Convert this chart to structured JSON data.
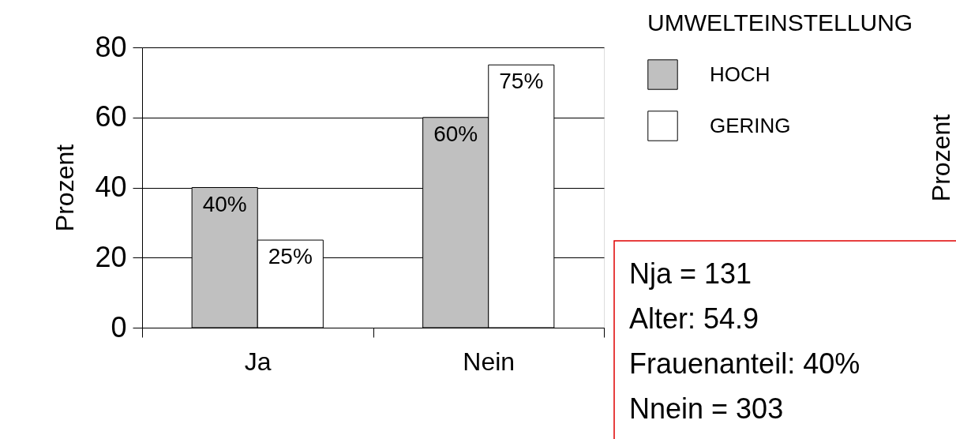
{
  "chart_data": {
    "type": "bar",
    "categories": [
      "Ja",
      "Nein"
    ],
    "series": [
      {
        "name": "HOCH",
        "color": "#c0c0c0",
        "values": [
          40,
          60
        ],
        "value_labels": [
          "40%",
          "60%"
        ]
      },
      {
        "name": "GERING",
        "color": "#ffffff",
        "values": [
          25,
          75
        ],
        "value_labels": [
          "25%",
          "75%"
        ]
      }
    ],
    "ylabel": "Prozent",
    "ylim": [
      0,
      80
    ],
    "yticks": [
      0,
      20,
      40,
      60,
      80
    ],
    "grid": "y",
    "legend": "top right",
    "legend_title": "UMWELTEINSTELLUNG",
    "annotations": [
      "Nja = 131",
      "Alter: 54.9",
      "Frauenanteil: 40%",
      "Nnein = 303",
      "Prozent"
    ]
  }
}
